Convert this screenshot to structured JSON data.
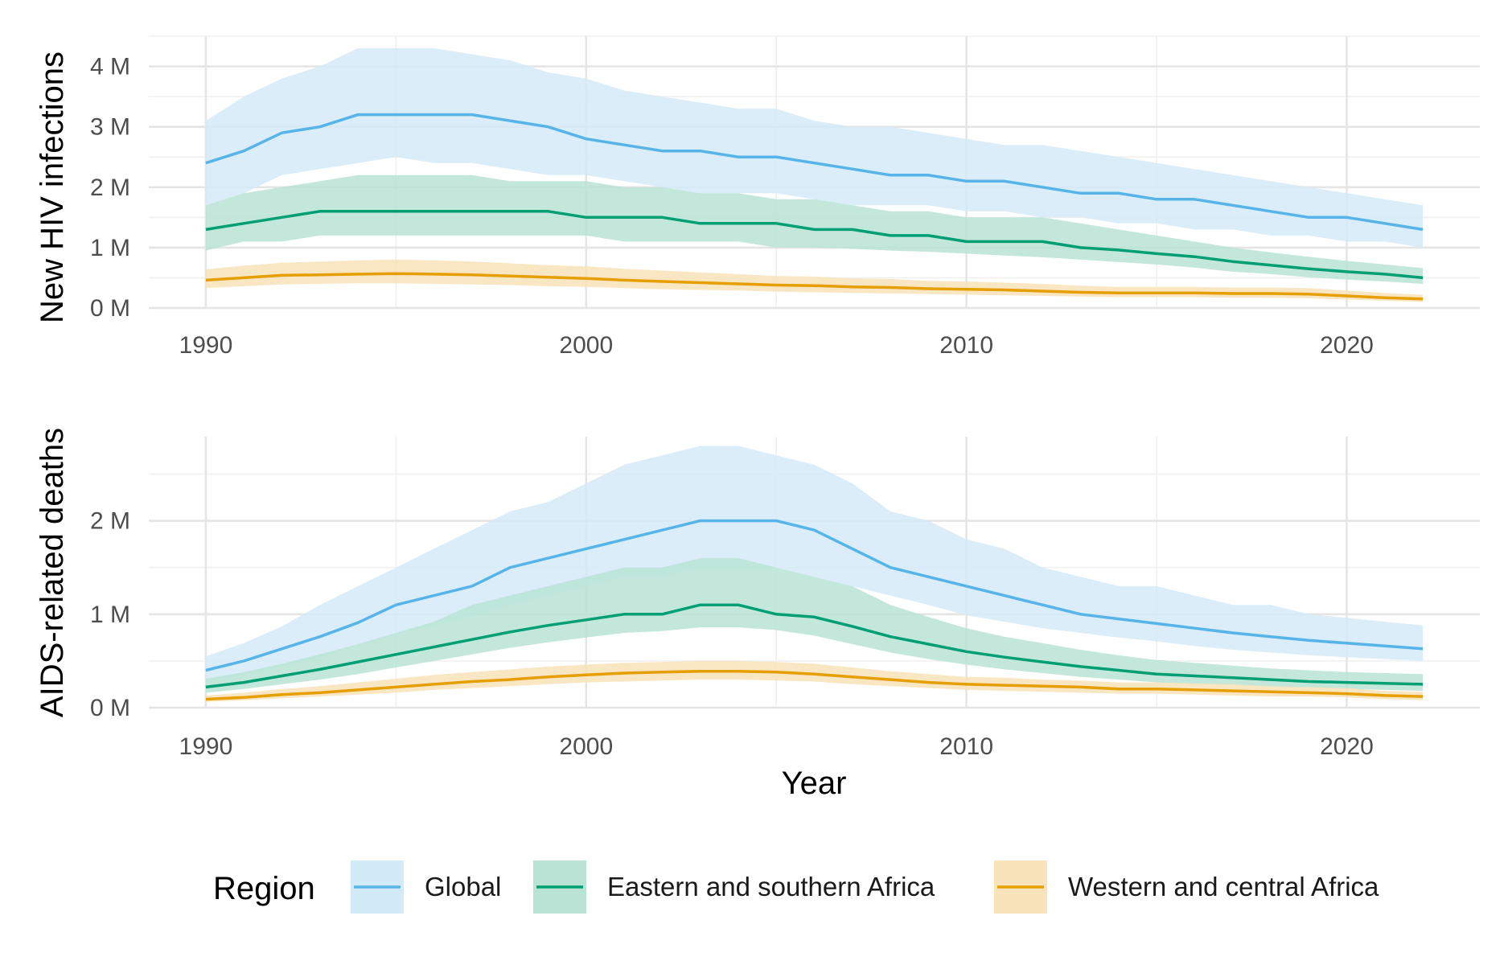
{
  "chart_data": [
    {
      "type": "area",
      "ylabel": "New HIV infections",
      "xlabel": "",
      "xlim": [
        1988.5,
        2023.5
      ],
      "ylim": [
        0,
        4.5
      ],
      "x_ticks": [
        1990,
        2000,
        2010,
        2020
      ],
      "y_ticks": [
        0,
        1,
        2,
        3,
        4
      ],
      "y_tick_labels": [
        "0 M",
        "1 M",
        "2 M",
        "3 M",
        "4 M"
      ],
      "x": [
        1990,
        1991,
        1992,
        1993,
        1994,
        1995,
        1996,
        1997,
        1998,
        1999,
        2000,
        2001,
        2002,
        2003,
        2004,
        2005,
        2006,
        2007,
        2008,
        2009,
        2010,
        2011,
        2012,
        2013,
        2014,
        2015,
        2016,
        2017,
        2018,
        2019,
        2020,
        2021,
        2022
      ],
      "series": [
        {
          "name": "Global",
          "values": [
            2.4,
            2.6,
            2.9,
            3.0,
            3.2,
            3.2,
            3.2,
            3.2,
            3.1,
            3.0,
            2.8,
            2.7,
            2.6,
            2.6,
            2.5,
            2.5,
            2.4,
            2.3,
            2.2,
            2.2,
            2.1,
            2.1,
            2.0,
            1.9,
            1.9,
            1.8,
            1.8,
            1.7,
            1.6,
            1.5,
            1.5,
            1.4,
            1.3
          ],
          "lower": [
            1.7,
            1.9,
            2.2,
            2.3,
            2.4,
            2.5,
            2.4,
            2.4,
            2.3,
            2.2,
            2.2,
            2.1,
            2.0,
            1.9,
            1.9,
            1.9,
            1.8,
            1.7,
            1.7,
            1.7,
            1.6,
            1.6,
            1.5,
            1.5,
            1.4,
            1.4,
            1.3,
            1.3,
            1.2,
            1.2,
            1.1,
            1.1,
            1.0
          ],
          "upper": [
            3.1,
            3.5,
            3.8,
            4.0,
            4.3,
            4.3,
            4.3,
            4.2,
            4.1,
            3.9,
            3.8,
            3.6,
            3.5,
            3.4,
            3.3,
            3.3,
            3.1,
            3.0,
            3.0,
            2.9,
            2.8,
            2.7,
            2.7,
            2.6,
            2.5,
            2.4,
            2.3,
            2.2,
            2.1,
            2.0,
            1.9,
            1.8,
            1.7
          ]
        },
        {
          "name": "Eastern and southern Africa",
          "values": [
            1.3,
            1.4,
            1.5,
            1.6,
            1.6,
            1.6,
            1.6,
            1.6,
            1.6,
            1.6,
            1.5,
            1.5,
            1.5,
            1.4,
            1.4,
            1.4,
            1.3,
            1.3,
            1.2,
            1.2,
            1.1,
            1.1,
            1.1,
            1.0,
            0.96,
            0.9,
            0.85,
            0.77,
            0.71,
            0.65,
            0.6,
            0.56,
            0.5
          ],
          "lower": [
            0.95,
            1.1,
            1.1,
            1.2,
            1.2,
            1.2,
            1.2,
            1.2,
            1.2,
            1.2,
            1.2,
            1.1,
            1.1,
            1.1,
            1.1,
            1.0,
            1.0,
            0.98,
            0.95,
            0.93,
            0.9,
            0.87,
            0.84,
            0.8,
            0.76,
            0.72,
            0.67,
            0.6,
            0.56,
            0.51,
            0.47,
            0.44,
            0.4
          ],
          "upper": [
            1.7,
            1.9,
            2.0,
            2.1,
            2.2,
            2.2,
            2.2,
            2.2,
            2.1,
            2.1,
            2.1,
            2.0,
            2.0,
            1.9,
            1.9,
            1.8,
            1.8,
            1.7,
            1.6,
            1.6,
            1.5,
            1.5,
            1.5,
            1.4,
            1.3,
            1.2,
            1.1,
            1.0,
            0.92,
            0.85,
            0.78,
            0.72,
            0.66
          ]
        },
        {
          "name": "Western and central Africa",
          "values": [
            0.46,
            0.5,
            0.54,
            0.55,
            0.56,
            0.57,
            0.56,
            0.55,
            0.53,
            0.51,
            0.49,
            0.46,
            0.44,
            0.42,
            0.4,
            0.38,
            0.37,
            0.35,
            0.34,
            0.32,
            0.31,
            0.3,
            0.28,
            0.26,
            0.25,
            0.25,
            0.25,
            0.24,
            0.24,
            0.23,
            0.2,
            0.17,
            0.15
          ],
          "lower": [
            0.33,
            0.36,
            0.39,
            0.4,
            0.41,
            0.41,
            0.4,
            0.39,
            0.38,
            0.36,
            0.35,
            0.33,
            0.31,
            0.3,
            0.29,
            0.27,
            0.26,
            0.25,
            0.24,
            0.23,
            0.22,
            0.21,
            0.2,
            0.19,
            0.18,
            0.18,
            0.18,
            0.17,
            0.17,
            0.16,
            0.14,
            0.12,
            0.1
          ],
          "upper": [
            0.64,
            0.7,
            0.75,
            0.77,
            0.79,
            0.8,
            0.79,
            0.77,
            0.74,
            0.71,
            0.69,
            0.65,
            0.62,
            0.59,
            0.56,
            0.53,
            0.52,
            0.49,
            0.48,
            0.45,
            0.44,
            0.42,
            0.4,
            0.37,
            0.35,
            0.35,
            0.35,
            0.34,
            0.34,
            0.33,
            0.29,
            0.25,
            0.22
          ]
        }
      ]
    },
    {
      "type": "area",
      "ylabel": "AIDS-related deaths",
      "xlabel": "Year",
      "xlim": [
        1988.5,
        2023.5
      ],
      "ylim": [
        0,
        2.9
      ],
      "x_ticks": [
        1990,
        2000,
        2010,
        2020
      ],
      "y_ticks": [
        0,
        1,
        2
      ],
      "y_tick_labels": [
        "0 M",
        "1 M",
        "2 M"
      ],
      "x": [
        1990,
        1991,
        1992,
        1993,
        1994,
        1995,
        1996,
        1997,
        1998,
        1999,
        2000,
        2001,
        2002,
        2003,
        2004,
        2005,
        2006,
        2007,
        2008,
        2009,
        2010,
        2011,
        2012,
        2013,
        2014,
        2015,
        2016,
        2017,
        2018,
        2019,
        2020,
        2021,
        2022
      ],
      "series": [
        {
          "name": "Global",
          "values": [
            0.4,
            0.5,
            0.63,
            0.76,
            0.91,
            1.1,
            1.2,
            1.3,
            1.5,
            1.6,
            1.7,
            1.8,
            1.9,
            2.0,
            2.0,
            2.0,
            1.9,
            1.7,
            1.5,
            1.4,
            1.3,
            1.2,
            1.1,
            1.0,
            0.95,
            0.9,
            0.85,
            0.8,
            0.76,
            0.72,
            0.69,
            0.66,
            0.63
          ],
          "lower": [
            0.28,
            0.35,
            0.44,
            0.54,
            0.66,
            0.79,
            0.88,
            0.98,
            1.1,
            1.2,
            1.3,
            1.4,
            1.4,
            1.5,
            1.5,
            1.5,
            1.4,
            1.3,
            1.2,
            1.1,
            0.99,
            0.92,
            0.85,
            0.8,
            0.75,
            0.71,
            0.66,
            0.62,
            0.59,
            0.56,
            0.54,
            0.52,
            0.5
          ],
          "upper": [
            0.55,
            0.69,
            0.87,
            1.1,
            1.3,
            1.5,
            1.7,
            1.9,
            2.1,
            2.2,
            2.4,
            2.6,
            2.7,
            2.8,
            2.8,
            2.7,
            2.6,
            2.4,
            2.1,
            2.0,
            1.8,
            1.7,
            1.5,
            1.4,
            1.3,
            1.3,
            1.2,
            1.1,
            1.1,
            1.0,
            0.96,
            0.92,
            0.88
          ]
        },
        {
          "name": "Eastern and southern Africa",
          "values": [
            0.22,
            0.27,
            0.34,
            0.41,
            0.49,
            0.57,
            0.65,
            0.73,
            0.81,
            0.88,
            0.94,
            1.0,
            1.0,
            1.1,
            1.1,
            1.0,
            0.97,
            0.87,
            0.76,
            0.68,
            0.6,
            0.54,
            0.49,
            0.44,
            0.4,
            0.36,
            0.34,
            0.32,
            0.3,
            0.28,
            0.27,
            0.26,
            0.25
          ],
          "lower": [
            0.16,
            0.2,
            0.25,
            0.3,
            0.36,
            0.43,
            0.5,
            0.57,
            0.64,
            0.7,
            0.75,
            0.8,
            0.82,
            0.86,
            0.86,
            0.83,
            0.77,
            0.68,
            0.59,
            0.52,
            0.46,
            0.41,
            0.37,
            0.33,
            0.3,
            0.27,
            0.25,
            0.24,
            0.22,
            0.21,
            0.2,
            0.19,
            0.18
          ],
          "upper": [
            0.31,
            0.38,
            0.47,
            0.57,
            0.68,
            0.8,
            0.92,
            1.1,
            1.2,
            1.3,
            1.4,
            1.5,
            1.5,
            1.6,
            1.6,
            1.5,
            1.4,
            1.3,
            1.1,
            0.97,
            0.85,
            0.76,
            0.69,
            0.62,
            0.56,
            0.51,
            0.48,
            0.45,
            0.42,
            0.4,
            0.38,
            0.37,
            0.36
          ]
        },
        {
          "name": "Western and central Africa",
          "values": [
            0.09,
            0.11,
            0.14,
            0.16,
            0.19,
            0.22,
            0.25,
            0.28,
            0.3,
            0.33,
            0.35,
            0.37,
            0.38,
            0.39,
            0.39,
            0.38,
            0.36,
            0.33,
            0.3,
            0.27,
            0.25,
            0.24,
            0.23,
            0.22,
            0.2,
            0.2,
            0.19,
            0.18,
            0.17,
            0.16,
            0.15,
            0.13,
            0.12
          ],
          "lower": [
            0.06,
            0.08,
            0.1,
            0.12,
            0.14,
            0.16,
            0.19,
            0.21,
            0.23,
            0.25,
            0.27,
            0.28,
            0.29,
            0.3,
            0.3,
            0.29,
            0.28,
            0.25,
            0.23,
            0.21,
            0.19,
            0.18,
            0.17,
            0.16,
            0.15,
            0.15,
            0.14,
            0.13,
            0.12,
            0.12,
            0.11,
            0.09,
            0.08
          ],
          "upper": [
            0.13,
            0.16,
            0.2,
            0.23,
            0.27,
            0.31,
            0.35,
            0.38,
            0.41,
            0.44,
            0.46,
            0.48,
            0.49,
            0.5,
            0.5,
            0.49,
            0.47,
            0.43,
            0.39,
            0.36,
            0.33,
            0.32,
            0.3,
            0.29,
            0.27,
            0.27,
            0.26,
            0.25,
            0.23,
            0.22,
            0.21,
            0.18,
            0.17
          ]
        }
      ]
    }
  ],
  "legend": {
    "title": "Region",
    "placement": "bottom",
    "items": [
      {
        "label": "Global",
        "line": "#56B4E9",
        "fill": "#D3EAF7"
      },
      {
        "label": "Eastern and southern Africa",
        "line": "#009E73",
        "fill": "#B9E4D5"
      },
      {
        "label": "Western and central Africa",
        "line": "#E69F00",
        "fill": "#F8E3BA"
      }
    ]
  },
  "colors": {
    "Global": {
      "line": "#56B4E9",
      "band": "#D3EAF7"
    },
    "Eastern and southern Africa": {
      "line": "#009E73",
      "band": "#B9E4D5"
    },
    "Western and central Africa": {
      "line": "#E69F00",
      "band": "#F8E3BA"
    }
  }
}
